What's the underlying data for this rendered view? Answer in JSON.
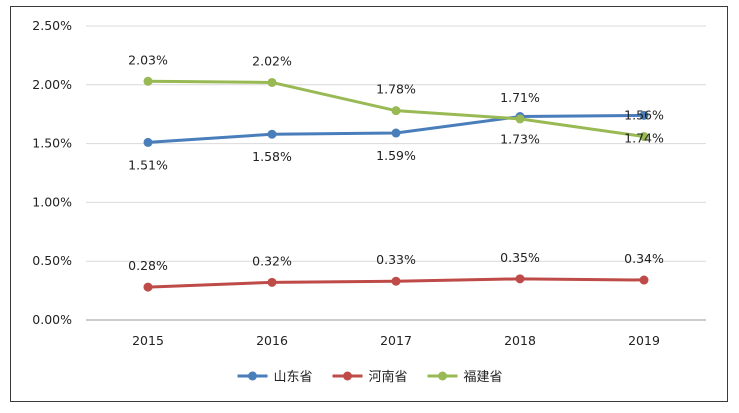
{
  "chart_data": {
    "type": "line",
    "title": "",
    "xlabel": "",
    "ylabel": "",
    "categories": [
      "2015",
      "2016",
      "2017",
      "2018",
      "2019"
    ],
    "ylim": [
      0,
      2.5
    ],
    "yticks": [
      "0.00%",
      "0.50%",
      "1.00%",
      "1.50%",
      "2.00%",
      "2.50%"
    ],
    "ytick_values": [
      0,
      0.5,
      1.0,
      1.5,
      2.0,
      2.5
    ],
    "grid": true,
    "legend_position": "bottom",
    "series": [
      {
        "name": "山东省",
        "color": "#4a7ebb",
        "values": [
          1.51,
          1.58,
          1.59,
          1.73,
          1.74
        ],
        "labels": [
          "1.51%",
          "1.58%",
          "1.59%",
          "1.73%",
          "1.74%"
        ],
        "label_side": [
          "below",
          "below",
          "below",
          "below",
          "below"
        ]
      },
      {
        "name": "河南省",
        "color": "#be4b48",
        "values": [
          0.28,
          0.32,
          0.33,
          0.35,
          0.34
        ],
        "labels": [
          "0.28%",
          "0.32%",
          "0.33%",
          "0.35%",
          "0.34%"
        ],
        "label_side": [
          "above",
          "above",
          "above",
          "above",
          "above"
        ]
      },
      {
        "name": "福建省",
        "color": "#98b954",
        "values": [
          2.03,
          2.02,
          1.78,
          1.71,
          1.56
        ],
        "labels": [
          "2.03%",
          "2.02%",
          "1.78%",
          "1.71%",
          "1.56%"
        ],
        "label_side": [
          "above",
          "above",
          "above",
          "above",
          "above"
        ]
      }
    ]
  }
}
